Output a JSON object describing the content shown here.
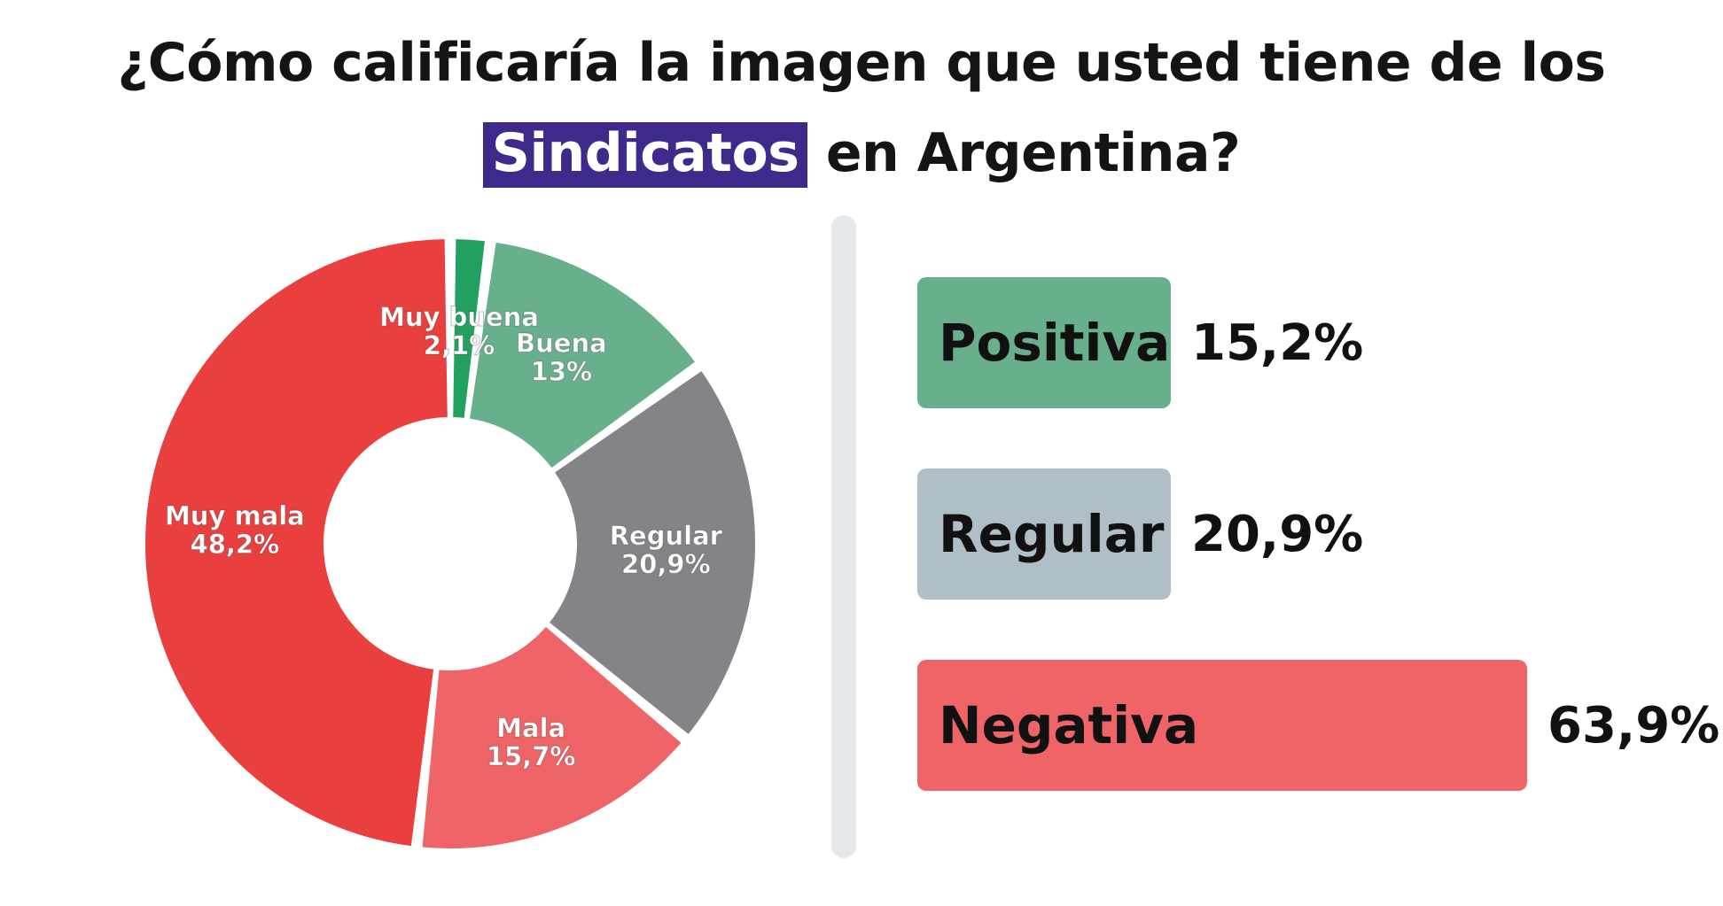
{
  "title": {
    "line1": "¿Cómo calificaría la imagen que usted tiene de los",
    "highlight": "Sindicatos",
    "line2_rest": "en Argentina?",
    "highlight_color": "#3f2a8c"
  },
  "chart_data": [
    {
      "type": "pie",
      "variant": "donut",
      "slices": [
        {
          "label": "Muy buena",
          "value": 2.1,
          "display": "2,1%",
          "color": "#22a060"
        },
        {
          "label": "Buena",
          "value": 13,
          "display": "13%",
          "color": "#68b08c"
        },
        {
          "label": "Regular",
          "value": 20.9,
          "display": "20,9%",
          "color": "#838487"
        },
        {
          "label": "Mala",
          "value": 15.7,
          "display": "15,7%",
          "color": "#ee6467"
        },
        {
          "label": "Muy mala",
          "value": 48.2,
          "display": "48,2%",
          "color": "#ea3f3f"
        }
      ]
    },
    {
      "type": "bar",
      "orientation": "horizontal",
      "categories": [
        "Positiva",
        "Regular",
        "Negativa"
      ],
      "values": [
        15.2,
        20.9,
        63.9
      ],
      "displays": [
        "15,2%",
        "20,9%",
        "63,9%"
      ],
      "colors": [
        "#68b08c",
        "#b0bec5",
        "#ee6467"
      ]
    }
  ]
}
